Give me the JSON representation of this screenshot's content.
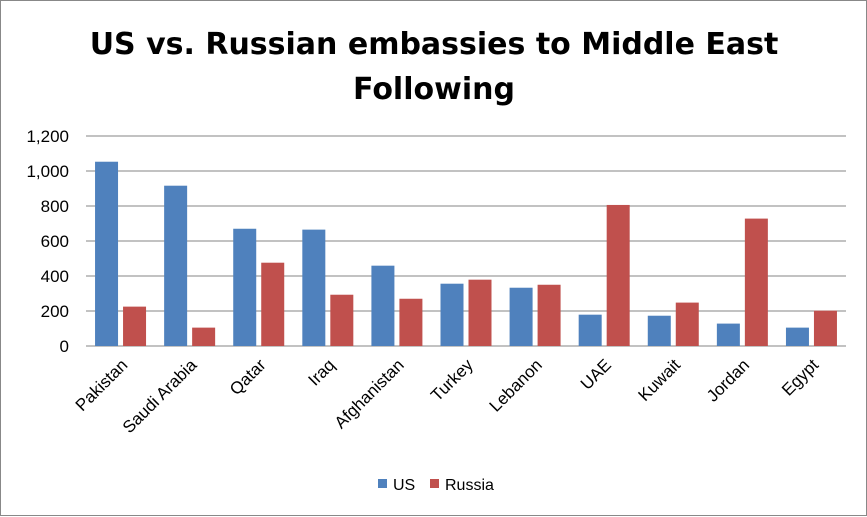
{
  "chart_data": {
    "type": "bar",
    "title_lines": [
      "US vs. Russian embassies to Middle East",
      "Following"
    ],
    "xlabel": "",
    "ylabel": "",
    "ylim": [
      0,
      1200
    ],
    "yticks": [
      0,
      200,
      400,
      600,
      800,
      1000,
      1200
    ],
    "ytick_labels": [
      "0",
      "200",
      "400",
      "600",
      "800",
      "1,000",
      "1,200"
    ],
    "grid": true,
    "legend_position": "bottom",
    "categories": [
      "Pakistan",
      "Saudi Arabia",
      "Qatar",
      "Iraq",
      "Afghanistan",
      "Turkey",
      "Lebanon",
      "UAE",
      "Kuwait",
      "Jordan",
      "Egypt"
    ],
    "series": [
      {
        "name": "US",
        "color": "#4f81bd",
        "values": [
          1053,
          916,
          670,
          665,
          459,
          356,
          333,
          179,
          173,
          128,
          105
        ]
      },
      {
        "name": "Russia",
        "color": "#c0504d",
        "values": [
          225,
          105,
          476,
          293,
          270,
          379,
          350,
          806,
          248,
          728,
          202
        ]
      }
    ]
  }
}
